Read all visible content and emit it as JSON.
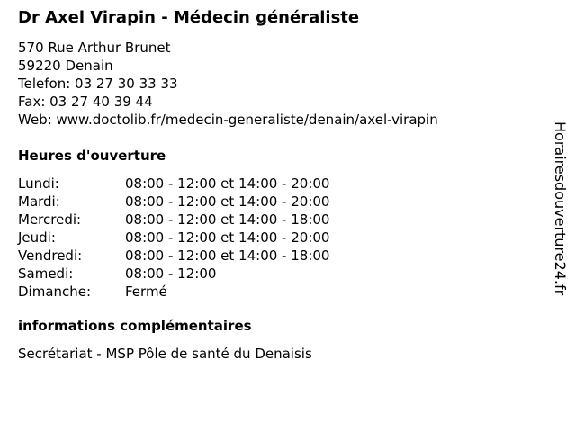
{
  "title": "Dr Axel Virapin - Médecin généraliste",
  "address": {
    "street": "570 Rue Arthur Brunet",
    "city": "59220 Denain",
    "phone": "Telefon: 03 27 30 33 33",
    "fax": "Fax: 03 27 40 39 44",
    "web": "Web: www.doctolib.fr/medecin-generaliste/denain/axel-virapin"
  },
  "hours_heading": "Heures d'ouverture",
  "hours": [
    {
      "day": "Lundi:",
      "time": "08:00 - 12:00 et 14:00 - 20:00"
    },
    {
      "day": "Mardi:",
      "time": "08:00 - 12:00 et 14:00 - 20:00"
    },
    {
      "day": "Mercredi:",
      "time": "08:00 - 12:00 et 14:00 - 18:00"
    },
    {
      "day": "Jeudi:",
      "time": "08:00 - 12:00 et 14:00 - 20:00"
    },
    {
      "day": "Vendredi:",
      "time": "08:00 - 12:00 et 14:00 - 18:00"
    },
    {
      "day": "Samedi:",
      "time": "08:00 - 12:00"
    },
    {
      "day": "Dimanche:",
      "time": "Fermé"
    }
  ],
  "info_heading": "informations complémentaires",
  "info_text": "Secrétariat - MSP Pôle de santé du Denaisis",
  "watermark": "Horairesdouverture24.fr"
}
